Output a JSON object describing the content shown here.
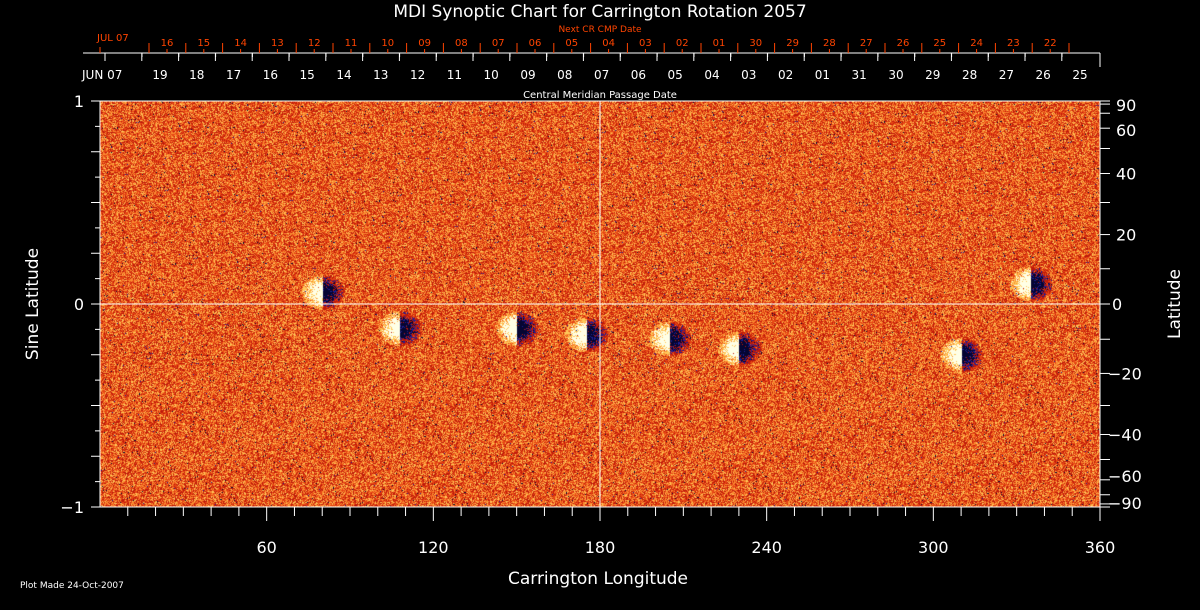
{
  "chart_data": {
    "type": "heatmap",
    "title": "MDI Synoptic Chart for Carrington Rotation 2057",
    "xlabel": "Carrington Longitude",
    "ylabel_left": "Sine Latitude",
    "ylabel_right": "Latitude",
    "xlim": [
      0,
      360
    ],
    "ylim": [
      -1,
      1
    ],
    "x_ticks": [
      "60",
      "120",
      "180",
      "240",
      "300",
      "360"
    ],
    "y_left_ticks": [
      "1",
      "0",
      "−1"
    ],
    "y_right_ticks": [
      "90",
      "60",
      "40",
      "20",
      "0",
      "−20",
      "−40",
      "−60",
      "−90"
    ],
    "y_right_values": [
      90,
      60,
      40,
      20,
      0,
      -20,
      -40,
      -60,
      -90
    ],
    "top_axis": {
      "label": "Central Meridian Passage Date",
      "start_label": "JUN 07",
      "day_labels": [
        "19",
        "18",
        "17",
        "16",
        "15",
        "14",
        "13",
        "12",
        "11",
        "10",
        "09",
        "08",
        "07",
        "06",
        "05",
        "04",
        "03",
        "02",
        "01",
        "31",
        "30",
        "29",
        "28",
        "27",
        "26",
        "25"
      ]
    },
    "next_axis": {
      "label": "Next CR CMP Date",
      "start_label": "JUL 07",
      "day_labels": [
        "16",
        "15",
        "14",
        "13",
        "12",
        "11",
        "10",
        "09",
        "08",
        "07",
        "06",
        "05",
        "04",
        "03",
        "02",
        "01",
        "30",
        "29",
        "28",
        "27",
        "26",
        "25",
        "24",
        "23",
        "22"
      ]
    },
    "active_regions": [
      {
        "lon": 80,
        "sinlat": 0.06
      },
      {
        "lon": 108,
        "sinlat": -0.12
      },
      {
        "lon": 150,
        "sinlat": -0.12
      },
      {
        "lon": 175,
        "sinlat": -0.15
      },
      {
        "lon": 205,
        "sinlat": -0.17
      },
      {
        "lon": 230,
        "sinlat": -0.22
      },
      {
        "lon": 310,
        "sinlat": -0.25
      },
      {
        "lon": 335,
        "sinlat": 0.1
      }
    ],
    "colors": {
      "background": "#000000",
      "axis": "#ffffff",
      "next_axis": "#ff4400",
      "field_base": "#e8501a",
      "positive": "#ffffff",
      "negative": "#0a0a60"
    }
  },
  "footer": "Plot Made 24-Oct-2007"
}
